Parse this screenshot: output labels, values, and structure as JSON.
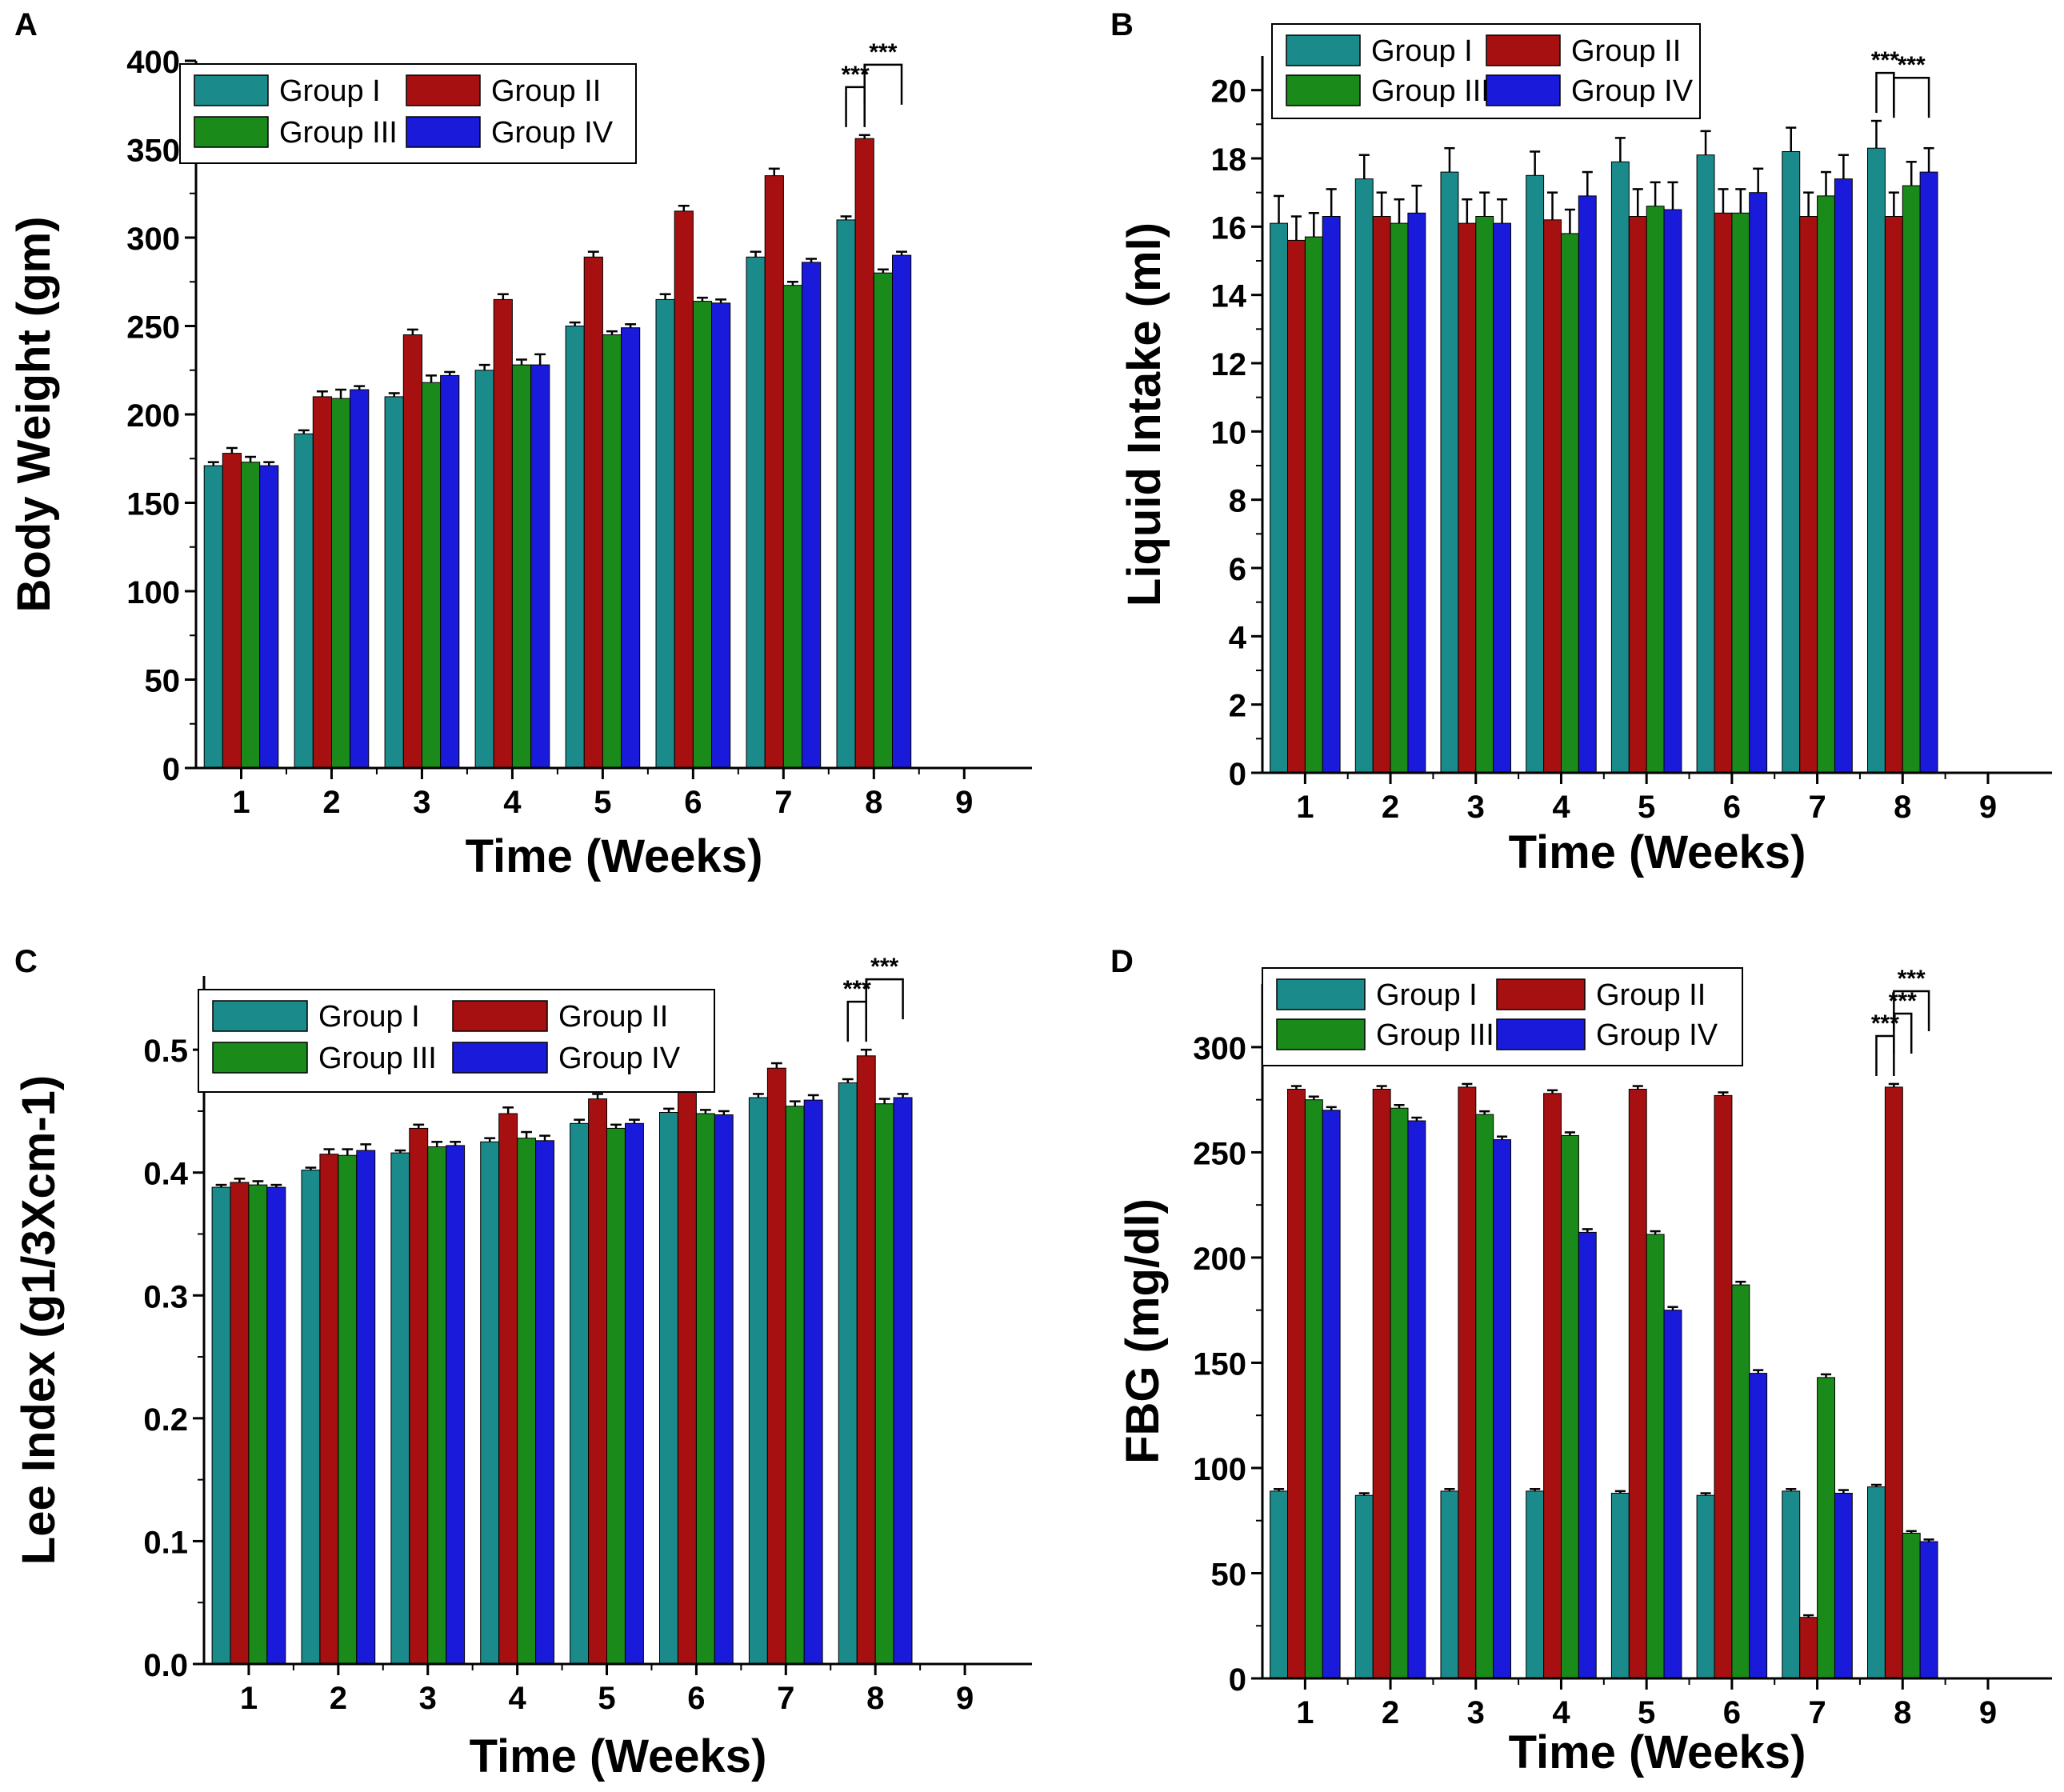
{
  "chart_data": [
    {
      "panel": "A",
      "type": "bar",
      "title": "",
      "xlabel": "Time (Weeks)",
      "ylabel": "Body Weight (gm)",
      "ylim": [
        0,
        400
      ],
      "yticks": [
        0,
        50,
        100,
        150,
        200,
        250,
        300,
        350,
        400
      ],
      "xticks": [
        "1",
        "2",
        "3",
        "4",
        "5",
        "6",
        "7",
        "8",
        "9"
      ],
      "categories": [
        "1",
        "2",
        "3",
        "4",
        "5",
        "6",
        "7",
        "8"
      ],
      "legend_position": "top-left",
      "series": [
        {
          "name": "Group I",
          "color": "#1b8a8a",
          "values": [
            171,
            189,
            210,
            225,
            250,
            265,
            289,
            310
          ],
          "errors": [
            2,
            2,
            2,
            3,
            2,
            3,
            3,
            2
          ]
        },
        {
          "name": "Group II",
          "color": "#a61010",
          "values": [
            178,
            210,
            245,
            265,
            289,
            315,
            335,
            356
          ],
          "errors": [
            3,
            3,
            3,
            3,
            3,
            3,
            4,
            2
          ]
        },
        {
          "name": "Group III",
          "color": "#1a8a1a",
          "values": [
            173,
            209,
            218,
            228,
            245,
            264,
            273,
            280
          ],
          "errors": [
            3,
            5,
            4,
            3,
            2,
            2,
            2,
            2
          ]
        },
        {
          "name": "Group IV",
          "color": "#1a1adb",
          "values": [
            171,
            214,
            222,
            228,
            249,
            263,
            286,
            290
          ],
          "errors": [
            2,
            2,
            2,
            6,
            2,
            2,
            2,
            2
          ]
        }
      ],
      "significance": [
        {
          "label": "***",
          "from": "Group I",
          "to": "Group II",
          "category": "8"
        },
        {
          "label": "***",
          "from": "Group II",
          "to": "Group IV",
          "category": "8"
        }
      ]
    },
    {
      "panel": "B",
      "type": "bar",
      "title": "",
      "xlabel": "Time (Weeks)",
      "ylabel": "Liquid Intake (ml)",
      "ylim": [
        0,
        21
      ],
      "yticks": [
        0,
        2,
        4,
        6,
        8,
        10,
        12,
        14,
        16,
        18,
        20
      ],
      "xticks": [
        "1",
        "2",
        "3",
        "4",
        "5",
        "6",
        "7",
        "8",
        "9"
      ],
      "categories": [
        "1",
        "2",
        "3",
        "4",
        "5",
        "6",
        "7",
        "8"
      ],
      "legend_position": "top-left",
      "series": [
        {
          "name": "Group I",
          "color": "#1b8a8a",
          "values": [
            16.1,
            17.4,
            17.6,
            17.5,
            17.9,
            18.1,
            18.2,
            18.3
          ],
          "errors": [
            0.8,
            0.7,
            0.7,
            0.7,
            0.7,
            0.7,
            0.7,
            0.8
          ]
        },
        {
          "name": "Group II",
          "color": "#a61010",
          "values": [
            15.6,
            16.3,
            16.1,
            16.2,
            16.3,
            16.4,
            16.3,
            16.3
          ],
          "errors": [
            0.7,
            0.7,
            0.7,
            0.8,
            0.8,
            0.7,
            0.7,
            0.7
          ]
        },
        {
          "name": "Group III",
          "color": "#1a8a1a",
          "values": [
            15.7,
            16.1,
            16.3,
            15.8,
            16.6,
            16.4,
            16.9,
            17.2
          ],
          "errors": [
            0.7,
            0.7,
            0.7,
            0.7,
            0.7,
            0.7,
            0.7,
            0.7
          ]
        },
        {
          "name": "Group IV",
          "color": "#1a1adb",
          "values": [
            16.3,
            16.4,
            16.1,
            16.9,
            16.5,
            17.0,
            17.4,
            17.6
          ],
          "errors": [
            0.8,
            0.8,
            0.7,
            0.7,
            0.8,
            0.7,
            0.7,
            0.7
          ]
        }
      ],
      "significance": [
        {
          "label": "***",
          "from": "Group I",
          "to": "Group II",
          "category": "8"
        },
        {
          "label": "***",
          "from": "Group II",
          "to": "Group IV",
          "category": "8"
        }
      ]
    },
    {
      "panel": "C",
      "type": "bar",
      "title": "",
      "xlabel": "Time (Weeks)",
      "ylabel": "Lee Index (g1/3Xcm-1)",
      "ylim": [
        0,
        0.56
      ],
      "yticks": [
        0.0,
        0.1,
        0.2,
        0.3,
        0.4,
        0.5
      ],
      "yticklabels": [
        "0.0",
        "0.1",
        "0.2",
        "0.3",
        "0.4",
        "0.5"
      ],
      "xticks": [
        "1",
        "2",
        "3",
        "4",
        "5",
        "6",
        "7",
        "8",
        "9"
      ],
      "categories": [
        "1",
        "2",
        "3",
        "4",
        "5",
        "6",
        "7",
        "8"
      ],
      "legend_position": "top-left",
      "series": [
        {
          "name": "Group I",
          "color": "#1b8a8a",
          "values": [
            0.388,
            0.402,
            0.416,
            0.425,
            0.44,
            0.449,
            0.461,
            0.473
          ],
          "errors": [
            0.002,
            0.002,
            0.002,
            0.003,
            0.003,
            0.003,
            0.003,
            0.003
          ]
        },
        {
          "name": "Group II",
          "color": "#a61010",
          "values": [
            0.392,
            0.415,
            0.436,
            0.448,
            0.46,
            0.474,
            0.485,
            0.495
          ],
          "errors": [
            0.003,
            0.004,
            0.003,
            0.005,
            0.004,
            0.005,
            0.004,
            0.005
          ]
        },
        {
          "name": "Group III",
          "color": "#1a8a1a",
          "values": [
            0.39,
            0.414,
            0.421,
            0.428,
            0.436,
            0.448,
            0.454,
            0.456
          ],
          "errors": [
            0.003,
            0.005,
            0.004,
            0.005,
            0.003,
            0.003,
            0.004,
            0.004
          ]
        },
        {
          "name": "Group IV",
          "color": "#1a1adb",
          "values": [
            0.388,
            0.418,
            0.422,
            0.426,
            0.44,
            0.447,
            0.459,
            0.461
          ],
          "errors": [
            0.002,
            0.005,
            0.003,
            0.004,
            0.003,
            0.003,
            0.004,
            0.003
          ]
        }
      ],
      "significance": [
        {
          "label": "***",
          "from": "Group I",
          "to": "Group II",
          "category": "8"
        },
        {
          "label": "***",
          "from": "Group II",
          "to": "Group IV",
          "category": "8"
        }
      ]
    },
    {
      "panel": "D",
      "type": "bar",
      "title": "",
      "xlabel": "Time (Weeks)",
      "ylabel": "FBG (mg/dl)",
      "ylim": [
        0,
        330
      ],
      "yticks": [
        0,
        50,
        100,
        150,
        200,
        250,
        300
      ],
      "xticks": [
        "1",
        "2",
        "3",
        "4",
        "5",
        "6",
        "7",
        "8",
        "9"
      ],
      "categories": [
        "1",
        "2",
        "3",
        "4",
        "5",
        "6",
        "7",
        "8"
      ],
      "legend_position": "top-left",
      "series": [
        {
          "name": "Group I",
          "color": "#1b8a8a",
          "values": [
            89,
            87,
            89,
            89,
            88,
            87,
            89,
            91
          ],
          "errors": [
            1,
            1,
            1,
            1,
            1,
            1,
            1,
            1
          ]
        },
        {
          "name": "Group II",
          "color": "#a61010",
          "values": [
            280,
            280,
            281,
            278,
            280,
            277,
            29,
            281
          ],
          "errors": [
            1.5,
            1.5,
            1.5,
            1.5,
            1.5,
            1.5,
            1,
            1.5
          ]
        },
        {
          "name": "Group III",
          "color": "#1a8a1a",
          "values": [
            275,
            271,
            268,
            258,
            211,
            187,
            143,
            69
          ],
          "errors": [
            1.5,
            1.5,
            1.5,
            1.5,
            1.5,
            1.5,
            1.5,
            1
          ]
        },
        {
          "name": "Group IV",
          "color": "#1a1adb",
          "values": [
            270,
            265,
            256,
            212,
            175,
            145,
            88,
            65
          ],
          "errors": [
            1.5,
            1.5,
            1.5,
            1.5,
            1.5,
            1.5,
            1.5,
            1
          ]
        }
      ],
      "significance": [
        {
          "label": "***",
          "from": "Group I",
          "to": "Group II",
          "category": "8"
        },
        {
          "label": "***",
          "from": "Group II",
          "to": "Group III",
          "category": "8"
        },
        {
          "label": "***",
          "from": "Group II",
          "to": "Group IV",
          "category": "8"
        }
      ]
    }
  ]
}
